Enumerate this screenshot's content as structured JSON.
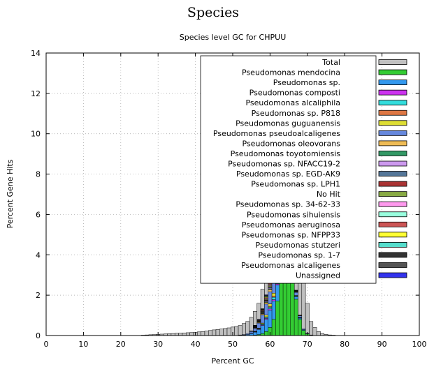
{
  "page": {
    "heading": "Species"
  },
  "chart_data": {
    "type": "bar",
    "stacked": true,
    "title": "Species level GC for CHPUU",
    "xlabel": "Percent GC",
    "ylabel": "Percent Gene Hits",
    "xlim": [
      0,
      100
    ],
    "ylim": [
      0,
      14
    ],
    "xticks": [
      "0",
      "10",
      "20",
      "30",
      "40",
      "50",
      "60",
      "70",
      "80",
      "90",
      "100"
    ],
    "yticks": [
      "0",
      "2",
      "4",
      "6",
      "8",
      "10",
      "12",
      "14"
    ],
    "grid": true,
    "legend_position": "top-right",
    "bin_width": 1,
    "x": [
      26,
      27,
      28,
      29,
      30,
      31,
      32,
      33,
      34,
      35,
      36,
      37,
      38,
      39,
      40,
      41,
      42,
      43,
      44,
      45,
      46,
      47,
      48,
      49,
      50,
      51,
      52,
      53,
      54,
      55,
      56,
      57,
      58,
      59,
      60,
      61,
      62,
      63,
      64,
      65,
      66,
      67,
      68,
      69,
      70,
      71,
      72,
      73,
      74,
      75,
      76,
      77
    ],
    "series": [
      {
        "name": "Total",
        "color": "#c0c0c0",
        "values": [
          0.02,
          0.03,
          0.04,
          0.05,
          0.06,
          0.07,
          0.08,
          0.09,
          0.1,
          0.11,
          0.12,
          0.13,
          0.14,
          0.15,
          0.16,
          0.18,
          0.2,
          0.22,
          0.25,
          0.28,
          0.3,
          0.32,
          0.35,
          0.38,
          0.42,
          0.45,
          0.5,
          0.6,
          0.7,
          0.9,
          1.2,
          1.6,
          2.3,
          3.8,
          6.2,
          7.8,
          11.2,
          13.2,
          13.5,
          11.8,
          8.0,
          7.0,
          5.3,
          3.2,
          1.6,
          0.7,
          0.4,
          0.2,
          0.1,
          0.06,
          0.03,
          0.02
        ]
      },
      {
        "name": "Pseudomonas mendocina",
        "color": "#33cc33",
        "values": [
          0,
          0,
          0,
          0,
          0,
          0,
          0,
          0,
          0,
          0,
          0,
          0,
          0,
          0,
          0,
          0,
          0,
          0,
          0,
          0,
          0,
          0,
          0,
          0,
          0,
          0,
          0,
          0,
          0,
          0,
          0.02,
          0.05,
          0.1,
          0.2,
          0.4,
          0.8,
          1.7,
          3.1,
          4.7,
          3.8,
          2.6,
          1.8,
          0.8,
          0.25,
          0.08,
          0.02,
          0,
          0,
          0,
          0,
          0,
          0
        ]
      },
      {
        "name": "Pseudomonas sp.",
        "color": "#3399ee",
        "values": [
          0,
          0,
          0,
          0,
          0,
          0,
          0,
          0,
          0,
          0,
          0,
          0,
          0,
          0,
          0,
          0,
          0,
          0,
          0,
          0,
          0,
          0,
          0,
          0,
          0,
          0,
          0.02,
          0.03,
          0.05,
          0.1,
          0.15,
          0.25,
          0.4,
          0.6,
          0.85,
          0.9,
          0.8,
          0.65,
          0.5,
          0.35,
          0.2,
          0.12,
          0.06,
          0.03,
          0.01,
          0,
          0,
          0,
          0,
          0,
          0,
          0
        ]
      },
      {
        "name": "Pseudomonas composti",
        "color": "#cc33ee",
        "values": [
          0,
          0,
          0,
          0,
          0,
          0,
          0,
          0,
          0,
          0,
          0,
          0,
          0,
          0,
          0,
          0,
          0,
          0,
          0,
          0,
          0,
          0,
          0,
          0,
          0,
          0,
          0,
          0,
          0,
          0.01,
          0.01,
          0.02,
          0.03,
          0.05,
          0.07,
          0.08,
          0.06,
          0.04,
          0.03,
          0.02,
          0.01,
          0.01,
          0,
          0,
          0,
          0,
          0,
          0,
          0,
          0,
          0,
          0
        ]
      },
      {
        "name": "Pseudomonas alcaliphila",
        "color": "#33dddd",
        "values": [
          0,
          0,
          0,
          0,
          0,
          0,
          0,
          0,
          0,
          0,
          0,
          0,
          0,
          0,
          0,
          0,
          0,
          0,
          0,
          0,
          0,
          0,
          0,
          0,
          0,
          0,
          0,
          0,
          0,
          0,
          0.01,
          0.02,
          0.03,
          0.05,
          0.08,
          0.12,
          0.15,
          0.15,
          0.12,
          0.08,
          0.05,
          0.03,
          0.02,
          0.01,
          0,
          0,
          0,
          0,
          0,
          0,
          0,
          0
        ]
      },
      {
        "name": "Pseudomonas sp. P818",
        "color": "#dd7744",
        "values": [
          0,
          0,
          0,
          0,
          0,
          0,
          0,
          0,
          0,
          0,
          0,
          0,
          0,
          0,
          0,
          0,
          0,
          0,
          0,
          0,
          0,
          0,
          0,
          0,
          0,
          0,
          0,
          0,
          0,
          0,
          0.01,
          0.01,
          0.02,
          0.03,
          0.05,
          0.06,
          0.07,
          0.06,
          0.05,
          0.04,
          0.02,
          0.01,
          0.01,
          0,
          0,
          0,
          0,
          0,
          0,
          0,
          0,
          0
        ]
      },
      {
        "name": "Pseudomonas guguanensis",
        "color": "#dddd33",
        "values": [
          0,
          0,
          0,
          0,
          0,
          0,
          0,
          0,
          0,
          0,
          0,
          0,
          0,
          0,
          0,
          0,
          0,
          0,
          0,
          0,
          0,
          0,
          0,
          0,
          0,
          0,
          0,
          0,
          0,
          0.01,
          0.01,
          0.02,
          0.04,
          0.08,
          0.12,
          0.14,
          0.12,
          0.1,
          0.08,
          0.05,
          0.03,
          0.02,
          0.01,
          0,
          0,
          0,
          0,
          0,
          0,
          0,
          0,
          0
        ]
      },
      {
        "name": "Pseudomonas pseudoalcaligenes",
        "color": "#6688dd",
        "values": [
          0,
          0,
          0,
          0,
          0,
          0,
          0,
          0,
          0,
          0,
          0,
          0,
          0,
          0,
          0,
          0,
          0,
          0,
          0,
          0,
          0,
          0,
          0,
          0,
          0,
          0,
          0.01,
          0.02,
          0.04,
          0.08,
          0.15,
          0.25,
          0.4,
          0.55,
          0.6,
          0.65,
          0.7,
          0.55,
          0.45,
          0.4,
          0.25,
          0.15,
          0.08,
          0.04,
          0.02,
          0.01,
          0,
          0,
          0,
          0,
          0,
          0
        ]
      },
      {
        "name": "Pseudomonas oleovorans",
        "color": "#eebb55",
        "values": [
          0,
          0,
          0,
          0,
          0,
          0,
          0,
          0,
          0,
          0,
          0,
          0,
          0,
          0,
          0,
          0,
          0,
          0,
          0,
          0,
          0,
          0,
          0,
          0,
          0,
          0,
          0,
          0,
          0,
          0.01,
          0.02,
          0.03,
          0.05,
          0.08,
          0.1,
          0.12,
          0.12,
          0.1,
          0.08,
          0.06,
          0.04,
          0.02,
          0.01,
          0,
          0,
          0,
          0,
          0,
          0,
          0,
          0,
          0
        ]
      },
      {
        "name": "Pseudomonas toyotomiensis",
        "color": "#339966",
        "values": [
          0,
          0,
          0,
          0,
          0,
          0,
          0,
          0,
          0,
          0,
          0,
          0,
          0,
          0,
          0,
          0,
          0,
          0,
          0,
          0,
          0,
          0,
          0,
          0,
          0,
          0,
          0,
          0,
          0,
          0,
          0.01,
          0.01,
          0.02,
          0.03,
          0.04,
          0.05,
          0.05,
          0.04,
          0.03,
          0.02,
          0.01,
          0.01,
          0,
          0,
          0,
          0,
          0,
          0,
          0,
          0,
          0,
          0
        ]
      },
      {
        "name": "Pseudomonas sp. NFACC19-2",
        "color": "#cc99ee",
        "values": [
          0,
          0,
          0,
          0,
          0,
          0,
          0,
          0,
          0,
          0,
          0,
          0,
          0,
          0,
          0,
          0,
          0,
          0,
          0,
          0,
          0,
          0,
          0,
          0,
          0,
          0,
          0,
          0,
          0,
          0,
          0.01,
          0.01,
          0.02,
          0.03,
          0.04,
          0.04,
          0.04,
          0.03,
          0.02,
          0.02,
          0.01,
          0,
          0,
          0,
          0,
          0,
          0,
          0,
          0,
          0,
          0,
          0
        ]
      },
      {
        "name": "Pseudomonas sp. EGD-AK9",
        "color": "#557799",
        "values": [
          0,
          0,
          0,
          0,
          0,
          0,
          0,
          0,
          0,
          0,
          0,
          0,
          0,
          0,
          0,
          0,
          0,
          0,
          0,
          0,
          0,
          0,
          0,
          0,
          0,
          0,
          0,
          0,
          0,
          0,
          0.01,
          0.01,
          0.02,
          0.03,
          0.04,
          0.05,
          0.05,
          0.04,
          0.03,
          0.02,
          0.01,
          0.01,
          0,
          0,
          0,
          0,
          0,
          0,
          0,
          0,
          0,
          0
        ]
      },
      {
        "name": "Pseudomonas sp. LPH1",
        "color": "#aa3333",
        "values": [
          0,
          0,
          0,
          0,
          0,
          0,
          0,
          0,
          0,
          0,
          0,
          0,
          0,
          0,
          0,
          0,
          0,
          0,
          0,
          0,
          0,
          0,
          0,
          0,
          0,
          0,
          0,
          0,
          0,
          0,
          0.01,
          0.01,
          0.02,
          0.02,
          0.03,
          0.04,
          0.04,
          0.03,
          0.02,
          0.02,
          0.01,
          0,
          0,
          0,
          0,
          0,
          0,
          0,
          0,
          0,
          0,
          0
        ]
      },
      {
        "name": "No Hit",
        "color": "#88aa44",
        "values": [
          0,
          0,
          0,
          0,
          0,
          0,
          0,
          0,
          0,
          0,
          0,
          0,
          0,
          0,
          0,
          0,
          0,
          0,
          0,
          0,
          0,
          0,
          0,
          0,
          0,
          0,
          0,
          0,
          0,
          0.01,
          0.01,
          0.02,
          0.03,
          0.04,
          0.05,
          0.05,
          0.05,
          0.04,
          0.03,
          0.02,
          0.02,
          0.01,
          0.01,
          0,
          0,
          0,
          0,
          0,
          0,
          0,
          0,
          0
        ]
      },
      {
        "name": "Pseudomonas sp. 34-62-33",
        "color": "#ff99ee",
        "values": [
          0,
          0,
          0,
          0,
          0,
          0,
          0,
          0,
          0,
          0,
          0,
          0,
          0,
          0,
          0,
          0,
          0,
          0,
          0,
          0,
          0,
          0,
          0,
          0,
          0,
          0,
          0,
          0,
          0,
          0,
          0.01,
          0.01,
          0.02,
          0.03,
          0.03,
          0.04,
          0.04,
          0.03,
          0.03,
          0.02,
          0.01,
          0.01,
          0,
          0,
          0,
          0,
          0,
          0,
          0,
          0,
          0,
          0
        ]
      },
      {
        "name": "Pseudomonas sihuiensis",
        "color": "#99ffdd",
        "values": [
          0,
          0,
          0,
          0,
          0,
          0,
          0,
          0,
          0,
          0,
          0,
          0,
          0,
          0,
          0,
          0,
          0,
          0,
          0,
          0,
          0,
          0,
          0,
          0,
          0,
          0,
          0,
          0,
          0,
          0,
          0.01,
          0.01,
          0.01,
          0.02,
          0.03,
          0.03,
          0.03,
          0.03,
          0.02,
          0.02,
          0.01,
          0,
          0,
          0,
          0,
          0,
          0,
          0,
          0,
          0,
          0,
          0
        ]
      },
      {
        "name": "Pseudomonas aeruginosa",
        "color": "#cc5555",
        "values": [
          0,
          0,
          0,
          0,
          0,
          0,
          0,
          0,
          0,
          0,
          0,
          0,
          0,
          0,
          0,
          0,
          0,
          0,
          0,
          0,
          0,
          0,
          0,
          0,
          0,
          0,
          0,
          0,
          0,
          0.01,
          0.01,
          0.02,
          0.03,
          0.04,
          0.05,
          0.06,
          0.06,
          0.05,
          0.04,
          0.03,
          0.02,
          0.01,
          0.01,
          0,
          0,
          0,
          0,
          0,
          0,
          0,
          0,
          0
        ]
      },
      {
        "name": "Pseudomonas sp. NFPP33",
        "color": "#ffff33",
        "values": [
          0,
          0,
          0,
          0,
          0,
          0,
          0,
          0,
          0,
          0,
          0,
          0,
          0,
          0,
          0,
          0,
          0,
          0,
          0,
          0,
          0,
          0,
          0,
          0,
          0,
          0,
          0,
          0,
          0,
          0,
          0.01,
          0.01,
          0.02,
          0.04,
          0.06,
          0.08,
          0.08,
          0.06,
          0.04,
          0.03,
          0.02,
          0.01,
          0,
          0,
          0,
          0,
          0,
          0,
          0,
          0,
          0,
          0
        ]
      },
      {
        "name": "Pseudomonas stutzeri",
        "color": "#55ddcc",
        "values": [
          0,
          0,
          0,
          0,
          0,
          0,
          0,
          0,
          0,
          0,
          0,
          0,
          0,
          0,
          0,
          0,
          0,
          0,
          0,
          0,
          0,
          0,
          0,
          0,
          0,
          0,
          0,
          0,
          0,
          0,
          0.01,
          0.01,
          0.02,
          0.03,
          0.05,
          0.06,
          0.06,
          0.05,
          0.04,
          0.03,
          0.02,
          0.01,
          0,
          0,
          0,
          0,
          0,
          0,
          0,
          0,
          0,
          0
        ]
      },
      {
        "name": "Pseudomonas sp. 1-7",
        "color": "#333333",
        "values": [
          0,
          0,
          0,
          0,
          0,
          0,
          0,
          0,
          0,
          0,
          0,
          0,
          0,
          0,
          0,
          0,
          0,
          0,
          0,
          0,
          0,
          0,
          0,
          0,
          0,
          0,
          0,
          0,
          0,
          0,
          0.01,
          0.01,
          0.02,
          0.02,
          0.03,
          0.04,
          0.04,
          0.03,
          0.03,
          0.02,
          0.01,
          0.01,
          0,
          0,
          0,
          0,
          0,
          0,
          0,
          0,
          0,
          0
        ]
      },
      {
        "name": "Pseudomonas alcaligenes",
        "color": "#555555",
        "values": [
          0,
          0,
          0,
          0,
          0,
          0,
          0,
          0,
          0,
          0,
          0,
          0,
          0,
          0,
          0,
          0,
          0,
          0,
          0,
          0,
          0,
          0,
          0,
          0,
          0,
          0,
          0,
          0,
          0,
          0,
          0.01,
          0.01,
          0.02,
          0.03,
          0.04,
          0.04,
          0.04,
          0.04,
          0.03,
          0.02,
          0.01,
          0.01,
          0,
          0,
          0,
          0,
          0,
          0,
          0,
          0,
          0,
          0
        ]
      },
      {
        "name": "Unassigned",
        "color": "#3333ee",
        "values": [
          0,
          0,
          0,
          0,
          0,
          0,
          0,
          0,
          0,
          0,
          0,
          0,
          0,
          0,
          0,
          0,
          0,
          0,
          0,
          0,
          0,
          0,
          0,
          0,
          0,
          0,
          0,
          0,
          0,
          0,
          0.01,
          0.01,
          0.01,
          0.02,
          0.02,
          0.03,
          0.03,
          0.02,
          0.02,
          0.01,
          0.01,
          0,
          0,
          0,
          0,
          0,
          0,
          0,
          0,
          0,
          0,
          0
        ]
      }
    ]
  }
}
